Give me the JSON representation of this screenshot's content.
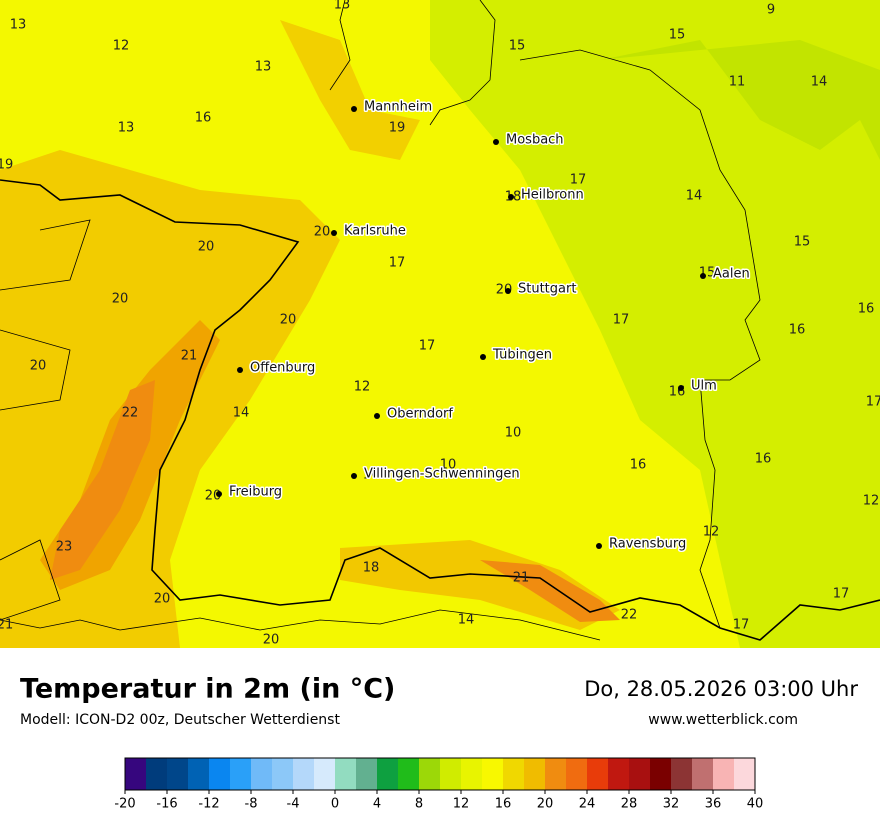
{
  "header": {
    "title": "Temperatur in 2m (in °C)",
    "subtitle": "Modell: ICON-D2 00z, Deutscher Wetterdienst",
    "datetime": "Do, 28.05.2026 03:00 Uhr",
    "website": "www.wetterblick.com"
  },
  "cities": [
    "Mannheim",
    "Mosbach",
    "Heilbronn",
    "Karlsruhe",
    "Aalen",
    "Stuttgart",
    "Tübingen",
    "Offenburg",
    "Ulm",
    "Oberndorf",
    "Villingen-Schwenningen",
    "Freiburg",
    "Ravensburg"
  ],
  "temperatures": [
    13,
    12,
    13,
    13,
    15,
    15,
    9,
    11,
    14,
    16,
    13,
    19,
    19,
    17,
    14,
    18,
    20,
    20,
    17,
    15,
    15,
    20,
    20,
    20,
    17,
    16,
    16,
    17,
    21,
    20,
    12,
    16,
    17,
    22,
    14,
    10,
    10,
    16,
    16,
    16,
    20,
    12,
    12,
    23,
    18,
    21,
    20,
    17,
    22,
    14,
    17,
    21,
    20
  ],
  "legend": {
    "range": [
      -20,
      40
    ],
    "ticks": [
      -20,
      -16,
      -12,
      -8,
      -4,
      0,
      4,
      8,
      12,
      16,
      20,
      24,
      28,
      32,
      36,
      40
    ],
    "colors": [
      "#36067e",
      "#003c7c",
      "#00468a",
      "#0062b4",
      "#0a86f0",
      "#2aa0f8",
      "#70baf8",
      "#8cc8f8",
      "#b4d8fa",
      "#d6eafc",
      "#92dcc0",
      "#62b090",
      "#0ea040",
      "#20bc1a",
      "#9cd808",
      "#d0ec00",
      "#e8f400",
      "#f8f800",
      "#f0d800",
      "#f0bc00",
      "#f08c10",
      "#f06c10",
      "#e83c0a",
      "#c01810",
      "#a81010",
      "#7a0000",
      "#8c3434",
      "#c07070",
      "#f8b4b4",
      "#fcd8dc"
    ]
  }
}
